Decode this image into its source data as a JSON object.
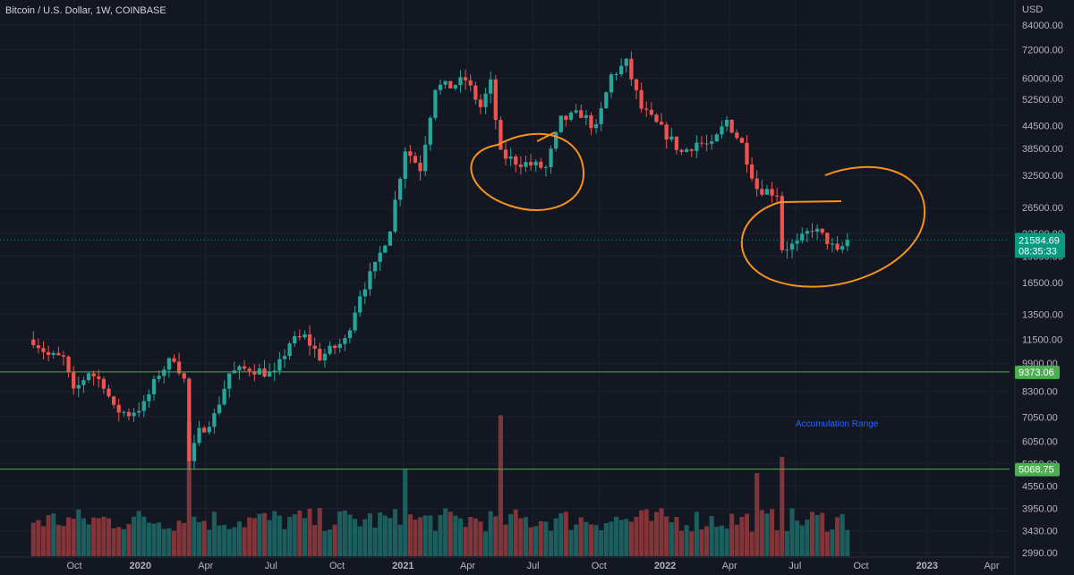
{
  "header": {
    "title": "Bitcoin / U.S. Dollar, 1W, COINBASE"
  },
  "chart_data": {
    "type": "candlestick",
    "title": "Bitcoin / U.S. Dollar, 1W, COINBASE",
    "currency": "USD",
    "y_scale": "log",
    "y_ticks": [
      "84000.00",
      "72000.00",
      "60000.00",
      "52500.00",
      "44500.00",
      "38500.00",
      "32500.00",
      "26500.00",
      "22500.00",
      "19500.00",
      "16500.00",
      "13500.00",
      "11500.00",
      "9900.00",
      "8300.00",
      "7050.00",
      "6050.00",
      "5250.00",
      "4550.00",
      "3950.00",
      "3430.00",
      "2990.00"
    ],
    "y_tick_values": [
      84000,
      72000,
      60000,
      52500,
      44500,
      38500,
      32500,
      26500,
      22500,
      19500,
      16500,
      13500,
      11500,
      9900,
      8300,
      7050,
      6050,
      5250,
      4550,
      3950,
      3430,
      2990
    ],
    "x_ticks": [
      "Oct",
      "2020",
      "Apr",
      "Jul",
      "Oct",
      "2021",
      "Apr",
      "Jul",
      "Oct",
      "2022",
      "Apr",
      "Jul",
      "Oct",
      "2023",
      "Apr"
    ],
    "x_tick_dates": [
      "2019-10-01",
      "2020-01-01",
      "2020-04-01",
      "2020-07-01",
      "2020-10-01",
      "2021-01-01",
      "2021-04-01",
      "2021-07-01",
      "2021-10-01",
      "2022-01-01",
      "2022-04-01",
      "2022-07-01",
      "2022-10-01",
      "2023-01-01",
      "2023-04-01"
    ],
    "current_price": {
      "value": "21584.69",
      "countdown": "08:35:33",
      "color": "#089981"
    },
    "levels": [
      {
        "value": "9373.06",
        "color": "#4caf50"
      },
      {
        "value": "5068.75",
        "color": "#4caf50"
      }
    ],
    "annotations": [
      {
        "text": "Accumulation Range",
        "color": "#2962ff"
      }
    ],
    "drawings": [
      {
        "type": "ellipse",
        "color": "#f7931a",
        "from": "2021-05",
        "to": "2021-08",
        "note": "hand-drawn circle"
      },
      {
        "type": "ellipse",
        "color": "#f7931a",
        "from": "2022-05",
        "to": "2022-09",
        "note": "hand-drawn circle"
      }
    ],
    "colors": {
      "up": "#26a69a",
      "down": "#ef5350",
      "background": "#131722"
    },
    "anchors": [
      {
        "d": "2019-08-05",
        "p": 11500
      },
      {
        "d": "2019-08-26",
        "p": 10400
      },
      {
        "d": "2019-09-16",
        "p": 10200
      },
      {
        "d": "2019-09-30",
        "p": 8200
      },
      {
        "d": "2019-10-21",
        "p": 9400
      },
      {
        "d": "2019-11-11",
        "p": 8700
      },
      {
        "d": "2019-11-25",
        "p": 7400
      },
      {
        "d": "2019-12-16",
        "p": 7200
      },
      {
        "d": "2020-01-06",
        "p": 7600
      },
      {
        "d": "2020-01-27",
        "p": 9300
      },
      {
        "d": "2020-02-17",
        "p": 10300
      },
      {
        "d": "2020-03-02",
        "p": 8900
      },
      {
        "d": "2020-03-09",
        "p": 5300
      },
      {
        "d": "2020-03-23",
        "p": 6400
      },
      {
        "d": "2020-04-13",
        "p": 7100
      },
      {
        "d": "2020-05-04",
        "p": 9300
      },
      {
        "d": "2020-06-01",
        "p": 9600
      },
      {
        "d": "2020-07-06",
        "p": 9200
      },
      {
        "d": "2020-07-27",
        "p": 11300
      },
      {
        "d": "2020-08-17",
        "p": 11700
      },
      {
        "d": "2020-09-07",
        "p": 10300
      },
      {
        "d": "2020-10-12",
        "p": 11400
      },
      {
        "d": "2020-11-02",
        "p": 15400
      },
      {
        "d": "2020-11-23",
        "p": 18200
      },
      {
        "d": "2020-12-14",
        "p": 23400
      },
      {
        "d": "2021-01-04",
        "p": 38500
      },
      {
        "d": "2021-01-25",
        "p": 34000
      },
      {
        "d": "2021-02-15",
        "p": 57000
      },
      {
        "d": "2021-03-08",
        "p": 57000
      },
      {
        "d": "2021-03-29",
        "p": 59500
      },
      {
        "d": "2021-04-19",
        "p": 50000
      },
      {
        "d": "2021-05-03",
        "p": 58000
      },
      {
        "d": "2021-05-17",
        "p": 37000
      },
      {
        "d": "2021-06-07",
        "p": 35500
      },
      {
        "d": "2021-07-19",
        "p": 34000
      },
      {
        "d": "2021-08-09",
        "p": 46000
      },
      {
        "d": "2021-09-06",
        "p": 48000
      },
      {
        "d": "2021-09-27",
        "p": 43500
      },
      {
        "d": "2021-10-18",
        "p": 61000
      },
      {
        "d": "2021-11-08",
        "p": 66000
      },
      {
        "d": "2021-11-29",
        "p": 49500
      },
      {
        "d": "2022-01-03",
        "p": 42000
      },
      {
        "d": "2022-01-24",
        "p": 37500
      },
      {
        "d": "2022-02-14",
        "p": 40000
      },
      {
        "d": "2022-03-07",
        "p": 39000
      },
      {
        "d": "2022-03-28",
        "p": 46000
      },
      {
        "d": "2022-04-18",
        "p": 39500
      },
      {
        "d": "2022-05-09",
        "p": 30000
      },
      {
        "d": "2022-06-06",
        "p": 29000
      },
      {
        "d": "2022-06-13",
        "p": 20500
      },
      {
        "d": "2022-07-04",
        "p": 21000
      },
      {
        "d": "2022-07-25",
        "p": 23300
      },
      {
        "d": "2022-08-15",
        "p": 21500
      },
      {
        "d": "2022-08-29",
        "p": 19800
      },
      {
        "d": "2022-09-12",
        "p": 21584.69
      }
    ],
    "volume_peaks": [
      {
        "d": "2020-03-09",
        "v": 1.0
      },
      {
        "d": "2021-01-04",
        "v": 0.65
      },
      {
        "d": "2021-05-17",
        "v": 1.05
      },
      {
        "d": "2022-05-09",
        "v": 0.62
      },
      {
        "d": "2022-06-13",
        "v": 0.74
      }
    ]
  }
}
